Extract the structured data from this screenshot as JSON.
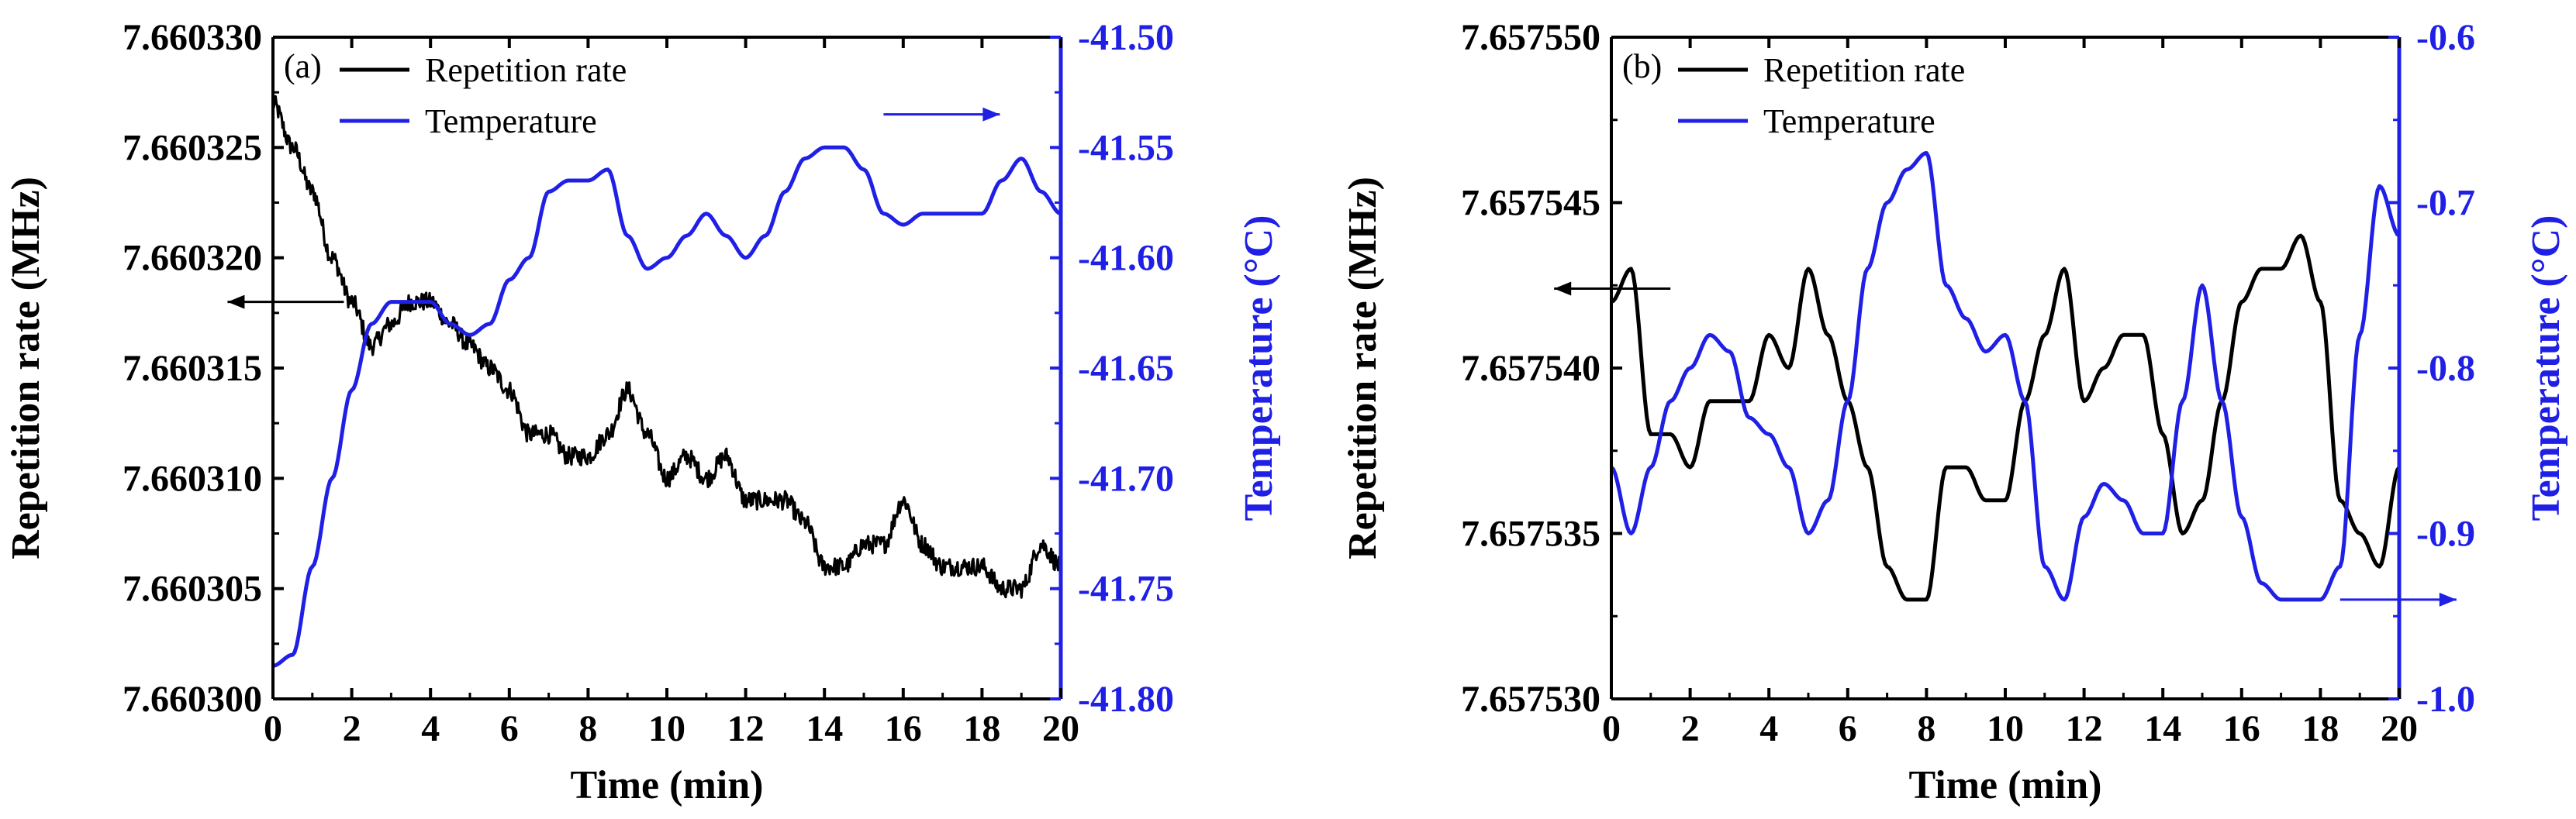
{
  "chart_data": [
    {
      "type": "line",
      "panel_label": "(a)",
      "xlabel": "Time (min)",
      "ylabel_left": "Repetition rate (MHz)",
      "ylabel_right": "Temperature (°C)",
      "xlim": [
        0,
        20
      ],
      "ylim_left": [
        7.6603,
        7.66033
      ],
      "ylim_right": [
        -41.8,
        -41.5
      ],
      "x_ticks": [
        "0",
        "2",
        "4",
        "6",
        "8",
        "10",
        "12",
        "14",
        "16",
        "18",
        "20"
      ],
      "y_ticks_left": [
        "7.660300",
        "7.660305",
        "7.660310",
        "7.660315",
        "7.660320",
        "7.660325",
        "7.660330"
      ],
      "y_ticks_right": [
        "-41.80",
        "-41.75",
        "-41.70",
        "-41.65",
        "-41.60",
        "-41.55",
        "-41.50"
      ],
      "colors": {
        "left": "#000000",
        "right": "#1f1fe6"
      },
      "grid": false,
      "legend": "top-left",
      "series": [
        {
          "name": "Repetition rate",
          "axis": "left",
          "color": "#000000",
          "x": [
            0,
            0.5,
            1,
            1.5,
            2,
            2.5,
            3,
            3.5,
            4,
            4.5,
            5,
            5.5,
            6,
            6.5,
            7,
            7.5,
            8,
            8.5,
            9,
            9.5,
            10,
            10.5,
            11,
            11.5,
            12,
            12.5,
            13,
            13.5,
            14,
            14.5,
            15,
            15.5,
            16,
            16.5,
            17,
            17.5,
            18,
            18.5,
            19,
            19.5,
            20
          ],
          "y": [
            7.660327,
            7.660325,
            7.660323,
            7.66032,
            7.660318,
            7.660316,
            7.660317,
            7.660318,
            7.660318,
            7.660317,
            7.660316,
            7.660315,
            7.660314,
            7.660312,
            7.660312,
            7.660311,
            7.660311,
            7.660312,
            7.660314,
            7.660312,
            7.66031,
            7.660311,
            7.66031,
            7.660311,
            7.660309,
            7.660309,
            7.660309,
            7.660308,
            7.660306,
            7.660306,
            7.660307,
            7.660307,
            7.660309,
            7.660307,
            7.660306,
            7.660306,
            7.660306,
            7.660305,
            7.660305,
            7.660307,
            7.660306
          ]
        },
        {
          "name": "Temperature",
          "axis": "right",
          "color": "#1f1fe6",
          "x": [
            0,
            0.5,
            1,
            1.5,
            2,
            2.5,
            3,
            3.5,
            4,
            4.5,
            5,
            5.5,
            6,
            6.5,
            7,
            7.5,
            8,
            8.5,
            9,
            9.5,
            10,
            10.5,
            11,
            11.5,
            12,
            12.5,
            13,
            13.5,
            14,
            14.5,
            15,
            15.5,
            16,
            16.5,
            17,
            17.5,
            18,
            18.5,
            19,
            19.5,
            20
          ],
          "y": [
            -41.785,
            -41.78,
            -41.74,
            -41.7,
            -41.66,
            -41.63,
            -41.62,
            -41.62,
            -41.62,
            -41.63,
            -41.635,
            -41.63,
            -41.61,
            -41.6,
            -41.57,
            -41.565,
            -41.565,
            -41.56,
            -41.59,
            -41.605,
            -41.6,
            -41.59,
            -41.58,
            -41.59,
            -41.6,
            -41.59,
            -41.57,
            -41.555,
            -41.55,
            -41.55,
            -41.56,
            -41.58,
            -41.585,
            -41.58,
            -41.58,
            -41.58,
            -41.58,
            -41.565,
            -41.555,
            -41.57,
            -41.58
          ]
        }
      ],
      "arrows": [
        {
          "points_to": "left",
          "at_x": 1.8,
          "at_y_left": 7.660318
        },
        {
          "points_to": "right",
          "at_x": 15.5,
          "at_y_right": -41.535
        }
      ]
    },
    {
      "type": "line",
      "panel_label": "(b)",
      "xlabel": "Time (min)",
      "ylabel_left": "Repetition rate (MHz)",
      "ylabel_right": "Temperature (°C)",
      "xlim": [
        0,
        20
      ],
      "ylim_left": [
        7.65753,
        7.65755
      ],
      "ylim_right": [
        -1.0,
        -0.6
      ],
      "x_ticks": [
        "0",
        "2",
        "4",
        "6",
        "8",
        "10",
        "12",
        "14",
        "16",
        "18",
        "20"
      ],
      "y_ticks_left": [
        "7.657530",
        "7.657535",
        "7.657540",
        "7.657545",
        "7.657550"
      ],
      "y_ticks_right": [
        "-1.0",
        "-0.9",
        "-0.8",
        "-0.7",
        "-0.6"
      ],
      "colors": {
        "left": "#000000",
        "right": "#1f1fe6"
      },
      "grid": false,
      "legend": "top-left",
      "series": [
        {
          "name": "Repetition rate",
          "axis": "left",
          "color": "#000000",
          "x": [
            0,
            0.5,
            1,
            1.5,
            2,
            2.5,
            3,
            3.5,
            4,
            4.5,
            5,
            5.5,
            6,
            6.5,
            7,
            7.5,
            8,
            8.5,
            9,
            9.5,
            10,
            10.5,
            11,
            11.5,
            12,
            12.5,
            13,
            13.5,
            14,
            14.5,
            15,
            15.5,
            16,
            16.5,
            17,
            17.5,
            18,
            18.5,
            19,
            19.5,
            20
          ],
          "y": [
            7.657542,
            7.657543,
            7.657538,
            7.657538,
            7.657537,
            7.657539,
            7.657539,
            7.657539,
            7.657541,
            7.65754,
            7.657543,
            7.657541,
            7.657539,
            7.657537,
            7.657534,
            7.657533,
            7.657533,
            7.657537,
            7.657537,
            7.657536,
            7.657536,
            7.657539,
            7.657541,
            7.657543,
            7.657539,
            7.65754,
            7.657541,
            7.657541,
            7.657538,
            7.657535,
            7.657536,
            7.657539,
            7.657542,
            7.657543,
            7.657543,
            7.657544,
            7.657542,
            7.657536,
            7.657535,
            7.657534,
            7.657537
          ]
        },
        {
          "name": "Temperature",
          "axis": "right",
          "color": "#1f1fe6",
          "x": [
            0,
            0.5,
            1,
            1.5,
            2,
            2.5,
            3,
            3.5,
            4,
            4.5,
            5,
            5.5,
            6,
            6.5,
            7,
            7.5,
            8,
            8.5,
            9,
            9.5,
            10,
            10.5,
            11,
            11.5,
            12,
            12.5,
            13,
            13.5,
            14,
            14.5,
            15,
            15.5,
            16,
            16.5,
            17,
            17.5,
            18,
            18.5,
            19,
            19.5,
            20
          ],
          "y": [
            -0.86,
            -0.9,
            -0.86,
            -0.82,
            -0.8,
            -0.78,
            -0.79,
            -0.83,
            -0.84,
            -0.86,
            -0.9,
            -0.88,
            -0.82,
            -0.74,
            -0.7,
            -0.68,
            -0.67,
            -0.75,
            -0.77,
            -0.79,
            -0.78,
            -0.82,
            -0.92,
            -0.94,
            -0.89,
            -0.87,
            -0.88,
            -0.9,
            -0.9,
            -0.82,
            -0.75,
            -0.82,
            -0.89,
            -0.93,
            -0.94,
            -0.94,
            -0.94,
            -0.92,
            -0.78,
            -0.69,
            -0.72
          ]
        }
      ],
      "arrows": [
        {
          "points_to": "left",
          "at_x": 1.5,
          "at_y_left": 7.6575424
        },
        {
          "points_to": "right",
          "at_x": 18.5,
          "at_y_right": -0.94
        }
      ]
    }
  ]
}
